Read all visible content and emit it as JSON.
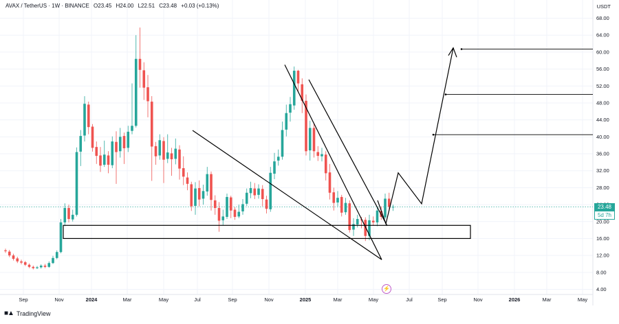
{
  "header": {
    "symbol": "AVAX / TetherUS · 1W · BINANCE",
    "open": "O23.45",
    "high": "H24.00",
    "low": "L22.51",
    "close": "C23.48",
    "change": "+0.03 (+0.13%)"
  },
  "price_axis_unit": "USDT",
  "last_price": "23.48",
  "countdown": "5d 7h",
  "brand": "TradingView",
  "colors": {
    "up": "#26a69a",
    "down": "#ef5350",
    "drawing": "#000000",
    "grid": "#f0f3fa"
  },
  "chart_data": {
    "type": "candlestick",
    "ylim": [
      2,
      70
    ],
    "y_ticks": [
      4,
      8,
      12,
      16,
      20,
      24,
      28,
      32,
      36,
      40,
      44,
      48,
      52,
      56,
      60,
      64,
      68
    ],
    "y_tick_labels": [
      "4.00",
      "8.00",
      "12.00",
      "16.00",
      "20.00",
      "24.00",
      "28.00",
      "32.00",
      "36.00",
      "40.00",
      "44.00",
      "48.00",
      "52.00",
      "56.00",
      "60.00",
      "64.00",
      "68.00"
    ],
    "x_ticks": [
      "Sep",
      "Nov",
      "2024",
      "Mar",
      "May",
      "Jul",
      "Sep",
      "Nov",
      "2025",
      "Mar",
      "May",
      "Jul",
      "Sep",
      "Nov",
      "2026",
      "Mar",
      "May"
    ],
    "candles": [
      [
        13.2,
        13.0,
        13.6,
        12.6
      ],
      [
        12.9,
        12.0,
        13.3,
        11.6
      ],
      [
        12.0,
        11.2,
        12.4,
        10.8
      ],
      [
        11.3,
        10.6,
        11.7,
        10.2
      ],
      [
        10.6,
        10.3,
        11.0,
        9.9
      ],
      [
        10.4,
        9.8,
        10.7,
        9.5
      ],
      [
        9.8,
        9.3,
        10.1,
        9.0
      ],
      [
        9.3,
        9.0,
        9.6,
        8.7
      ],
      [
        9.0,
        9.2,
        9.5,
        8.8
      ],
      [
        9.2,
        9.6,
        9.9,
        8.9
      ],
      [
        9.6,
        9.3,
        10.0,
        9.0
      ],
      [
        9.3,
        10.2,
        10.6,
        9.1
      ],
      [
        10.2,
        11.4,
        11.9,
        10.0
      ],
      [
        11.4,
        12.8,
        13.2,
        11.1
      ],
      [
        12.8,
        19.8,
        20.6,
        12.5
      ],
      [
        19.8,
        23.2,
        24.3,
        18.9
      ],
      [
        23.2,
        20.6,
        24.0,
        19.8
      ],
      [
        20.5,
        21.6,
        22.8,
        20.0
      ],
      [
        21.6,
        36.4,
        37.5,
        21.2
      ],
      [
        36.5,
        40.2,
        41.6,
        33.1
      ],
      [
        40.3,
        47.8,
        49.6,
        38.9
      ],
      [
        47.6,
        42.3,
        48.3,
        40.6
      ],
      [
        42.4,
        37.4,
        43.0,
        36.5
      ],
      [
        37.6,
        35.5,
        38.9,
        33.6
      ],
      [
        35.6,
        33.2,
        37.6,
        31.7
      ],
      [
        33.4,
        35.8,
        39.1,
        32.9
      ],
      [
        35.6,
        33.4,
        36.6,
        31.4
      ],
      [
        33.3,
        38.9,
        40.1,
        32.6
      ],
      [
        38.8,
        36.4,
        41.3,
        28.9
      ],
      [
        36.6,
        40.0,
        42.1,
        35.1
      ],
      [
        40.2,
        37.3,
        41.0,
        33.6
      ],
      [
        37.4,
        41.2,
        42.6,
        36.4
      ],
      [
        41.4,
        42.6,
        52.6,
        40.6
      ],
      [
        42.6,
        58.4,
        64.0,
        42.2
      ],
      [
        58.4,
        55.8,
        65.8,
        51.6
      ],
      [
        55.7,
        51.6,
        57.6,
        48.7
      ],
      [
        51.7,
        48.4,
        54.6,
        44.6
      ],
      [
        48.3,
        37.7,
        49.6,
        29.6
      ],
      [
        37.8,
        35.4,
        38.8,
        33.4
      ],
      [
        35.6,
        39.2,
        40.6,
        34.6
      ],
      [
        39.0,
        34.6,
        39.9,
        29.1
      ],
      [
        34.8,
        36.3,
        40.6,
        33.8
      ],
      [
        36.1,
        34.7,
        37.4,
        30.8
      ],
      [
        34.8,
        37.2,
        39.6,
        33.5
      ],
      [
        37.0,
        32.5,
        38.0,
        29.9
      ],
      [
        32.6,
        30.6,
        35.4,
        28.6
      ],
      [
        30.4,
        28.9,
        31.6,
        27.4
      ],
      [
        28.8,
        23.6,
        29.4,
        22.5
      ],
      [
        23.7,
        27.8,
        29.3,
        21.6
      ],
      [
        27.9,
        25.2,
        29.7,
        23.6
      ],
      [
        25.4,
        27.2,
        28.7,
        24.0
      ],
      [
        27.1,
        31.2,
        32.9,
        26.1
      ],
      [
        31.2,
        25.1,
        31.8,
        22.6
      ],
      [
        25.0,
        23.2,
        26.2,
        21.6
      ],
      [
        23.2,
        20.2,
        24.6,
        17.6
      ],
      [
        20.3,
        21.2,
        22.8,
        19.2
      ],
      [
        21.1,
        25.8,
        26.6,
        20.6
      ],
      [
        25.7,
        22.6,
        26.1,
        20.8
      ],
      [
        22.8,
        21.1,
        23.4,
        20.4
      ],
      [
        21.2,
        22.3,
        24.0,
        20.8
      ],
      [
        22.4,
        24.1,
        25.3,
        21.6
      ],
      [
        24.2,
        26.8,
        27.8,
        23.7
      ],
      [
        26.7,
        27.9,
        29.4,
        25.5
      ],
      [
        27.8,
        26.2,
        29.1,
        25.3
      ],
      [
        26.3,
        27.8,
        28.8,
        25.4
      ],
      [
        27.7,
        25.3,
        28.6,
        23.6
      ],
      [
        25.2,
        23.0,
        26.1,
        21.9
      ],
      [
        22.9,
        31.5,
        32.9,
        22.3
      ],
      [
        31.3,
        34.2,
        36.2,
        30.0
      ],
      [
        34.4,
        35.3,
        37.0,
        33.2
      ],
      [
        35.3,
        41.6,
        43.6,
        34.6
      ],
      [
        41.7,
        45.6,
        47.6,
        40.1
      ],
      [
        45.7,
        47.7,
        49.4,
        43.6
      ],
      [
        47.4,
        55.6,
        56.6,
        46.4
      ],
      [
        55.6,
        52.6,
        55.8,
        50.6
      ],
      [
        52.4,
        48.5,
        53.8,
        45.6
      ],
      [
        48.5,
        36.6,
        50.0,
        35.6
      ],
      [
        36.8,
        42.1,
        43.8,
        34.4
      ],
      [
        42.1,
        36.6,
        43.1,
        35.1
      ],
      [
        36.4,
        35.5,
        37.8,
        34.3
      ],
      [
        35.4,
        35.9,
        37.4,
        34.2
      ],
      [
        35.8,
        31.4,
        36.6,
        29.7
      ],
      [
        31.6,
        26.8,
        33.6,
        25.2
      ],
      [
        26.9,
        24.4,
        28.0,
        22.6
      ],
      [
        24.5,
        25.6,
        27.2,
        23.6
      ],
      [
        25.8,
        22.1,
        26.3,
        21.2
      ],
      [
        22.2,
        24.4,
        25.6,
        21.6
      ],
      [
        24.3,
        18.0,
        25.0,
        17.4
      ],
      [
        18.1,
        19.4,
        20.8,
        16.6
      ],
      [
        19.3,
        20.6,
        21.6,
        18.6
      ],
      [
        20.5,
        20.4,
        21.1,
        18.4
      ],
      [
        20.4,
        16.6,
        21.0,
        15.4
      ],
      [
        16.6,
        20.3,
        21.6,
        15.6
      ],
      [
        20.2,
        19.8,
        21.2,
        19.0
      ],
      [
        19.8,
        22.6,
        23.3,
        18.9
      ],
      [
        22.5,
        21.1,
        23.6,
        20.4
      ],
      [
        21.0,
        25.4,
        26.6,
        20.6
      ],
      [
        25.4,
        23.5,
        26.8,
        22.6
      ],
      [
        23.45,
        23.48,
        24.0,
        22.51
      ]
    ],
    "levels": [
      40.5,
      50.0,
      60.7
    ],
    "support_zone": [
      16.0,
      19.1
    ]
  }
}
